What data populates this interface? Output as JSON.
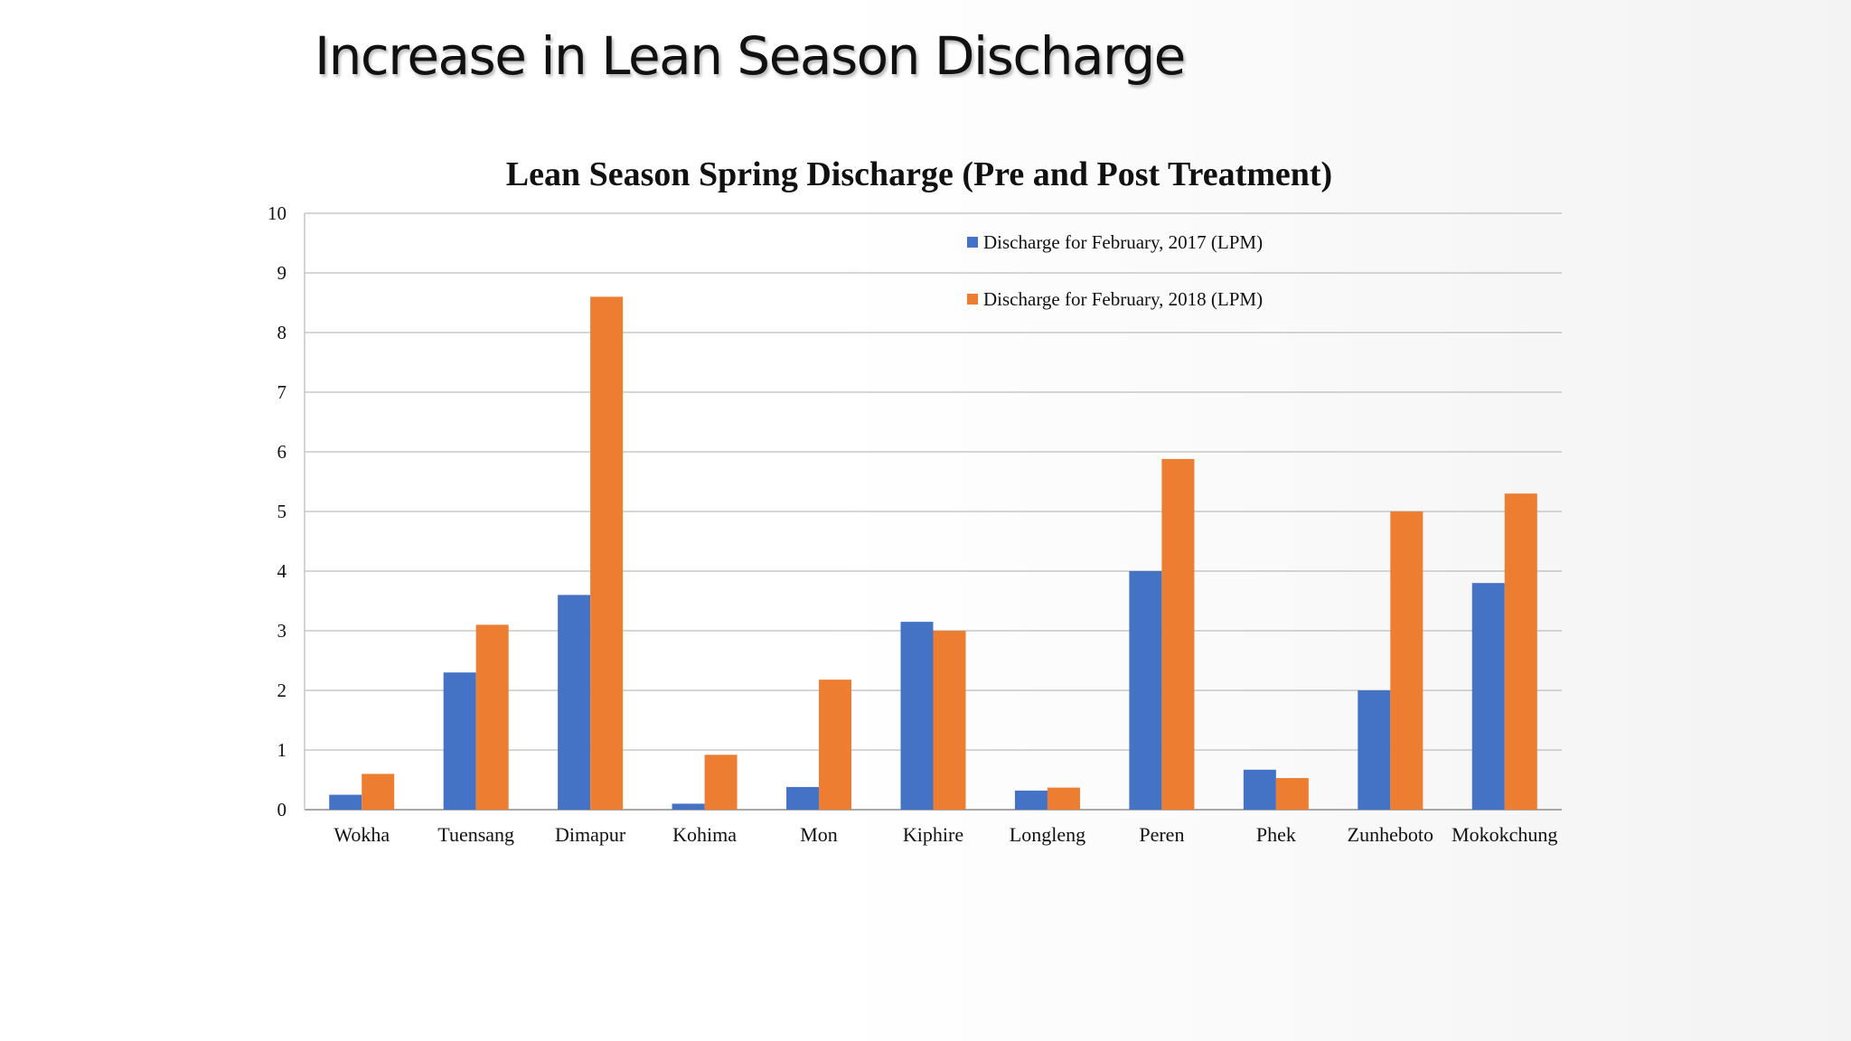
{
  "slide": {
    "title": "Increase in Lean Season Discharge"
  },
  "chart_data": {
    "type": "bar",
    "title": "Lean Season Spring Discharge (Pre and Post Treatment)",
    "xlabel": "",
    "ylabel": "",
    "ylim": [
      0,
      10
    ],
    "yticks": [
      "0",
      "1",
      "2",
      "3",
      "4",
      "5",
      "6",
      "7",
      "8",
      "9",
      "10"
    ],
    "grid": true,
    "legend_position": "top-right",
    "categories": [
      "Wokha",
      "Tuensang",
      "Dimapur",
      "Kohima",
      "Mon",
      "Kiphire",
      "Longleng",
      "Peren",
      "Phek",
      "Zunheboto",
      "Mokokchung"
    ],
    "series": [
      {
        "name": "Discharge for February, 2017 (LPM)",
        "color": "#4472c4",
        "values": [
          0.25,
          2.3,
          3.6,
          0.1,
          0.38,
          3.15,
          0.32,
          4.0,
          0.67,
          2.0,
          3.8
        ]
      },
      {
        "name": "Discharge for February, 2018 (LPM)",
        "color": "#ed7d31",
        "values": [
          0.6,
          3.1,
          8.6,
          0.92,
          2.18,
          3.0,
          0.37,
          5.88,
          0.53,
          5.0,
          5.3
        ]
      }
    ]
  }
}
